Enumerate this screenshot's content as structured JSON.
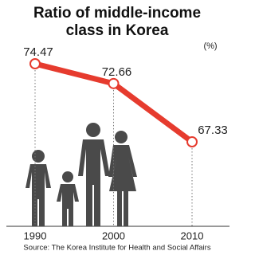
{
  "chart_data": {
    "type": "line",
    "title": "Ratio of middle-income class in Korea",
    "unit": "(%)",
    "categories": [
      "1990",
      "2000",
      "2010"
    ],
    "values": [
      74.47,
      72.66,
      67.33
    ],
    "color": "#e63b2e",
    "source": "Source: The Korea Institute for Health and Social Affairs"
  }
}
